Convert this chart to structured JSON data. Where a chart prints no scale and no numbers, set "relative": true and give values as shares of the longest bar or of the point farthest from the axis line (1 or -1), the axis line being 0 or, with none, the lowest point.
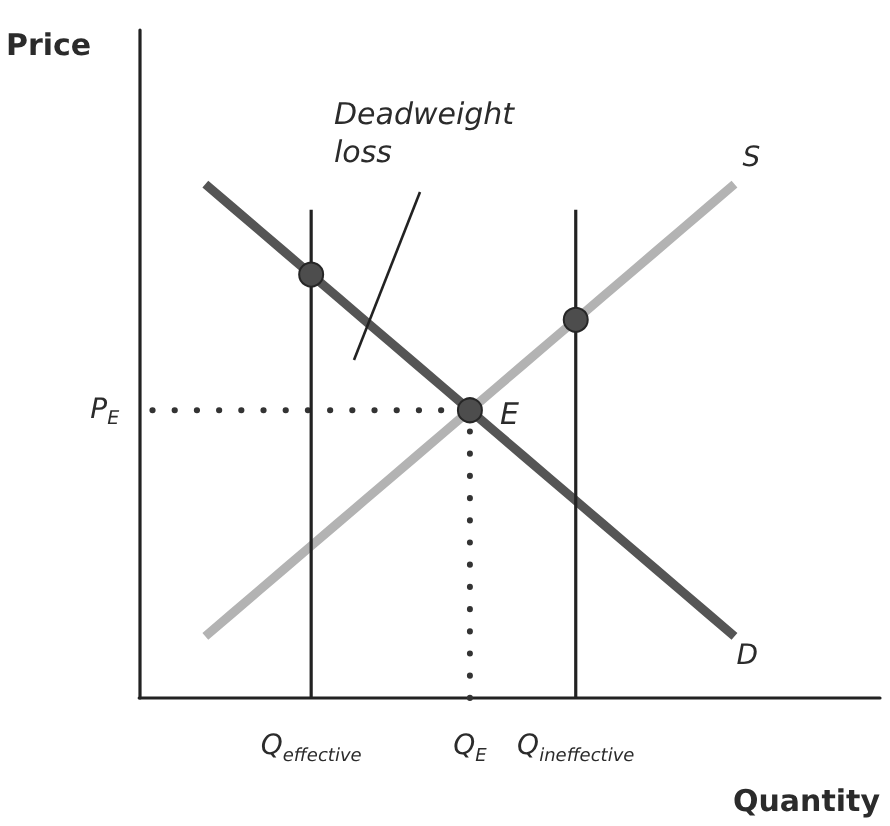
{
  "chart_data": {
    "type": "line",
    "relative": true,
    "xlabel": "Quantity",
    "ylabel": "Price",
    "categories": [
      null,
      null,
      null,
      null,
      null,
      null,
      "Q$_{effective}$",
      null,
      null,
      null,
      null,
      null,
      "Q$_{E}$",
      null,
      null,
      null,
      "Q$_{ineffective}$",
      null,
      null,
      null,
      null,
      null,
      null,
      null,
      null,
      null,
      null,
      null
    ],
    "series": [
      {
        "name": "D",
        "color": "#555555",
        "values": [
          null,
          null,
          1.0,
          0.956,
          0.912,
          0.868,
          0.824,
          0.78,
          0.736,
          0.692,
          0.648,
          0.604,
          0.56,
          0.516,
          0.472,
          0.428,
          0.384,
          0.34,
          0.296,
          0.252,
          0.208,
          0.164,
          0.12,
          null,
          null,
          null,
          null,
          null
        ]
      },
      {
        "name": "S",
        "color": "#b3b3b3",
        "values": [
          null,
          null,
          0.12,
          0.164,
          0.208,
          0.252,
          0.296,
          0.34,
          0.384,
          0.428,
          0.472,
          0.516,
          0.56,
          0.604,
          0.648,
          0.692,
          0.736,
          0.78,
          0.824,
          0.868,
          0.912,
          0.956,
          1.0,
          null,
          null,
          null,
          null,
          null
        ]
      },
      {
        "color": "#222222",
        "x": [
          "Q$_{effective}$",
          "Q$_{effective}$"
        ],
        "values": [
          0,
          0.95
        ]
      },
      {
        "color": "#222222",
        "x": [
          "Q$_{ineffective}$",
          "Q$_{ineffective}$"
        ],
        "values": [
          0,
          0.95
        ]
      },
      {
        "name": "P$_{E}$",
        "color": "#333333",
        "values": [
          0.56,
          0.56,
          0.56,
          0.56,
          0.56,
          0.56,
          0.56,
          0.56,
          0.56,
          0.56,
          0.56,
          0.56,
          0.56,
          null,
          null,
          null,
          null,
          null,
          null,
          null,
          null,
          null,
          null,
          null,
          null,
          null,
          null,
          null
        ],
        "line_style": "dotted"
      },
      {
        "color": "#333333",
        "x": [
          "Q$_{E}$",
          "Q$_{E}$"
        ],
        "values": [
          0,
          0.56
        ],
        "line_style": "dotted"
      },
      {
        "type": "scatter",
        "color": "#4d4d4d",
        "x": [
          "Q$_{effective}$",
          "Q$_{E}$",
          "Q$_{ineffective}$"
        ],
        "values": [
          0.824,
          0.56,
          0.736
        ],
        "marker": "circle"
      }
    ],
    "annotations": [
      {
        "text": "E",
        "x": "Q$_{E}$",
        "y": 0.56
      },
      "Deadweight loss"
    ]
  }
}
